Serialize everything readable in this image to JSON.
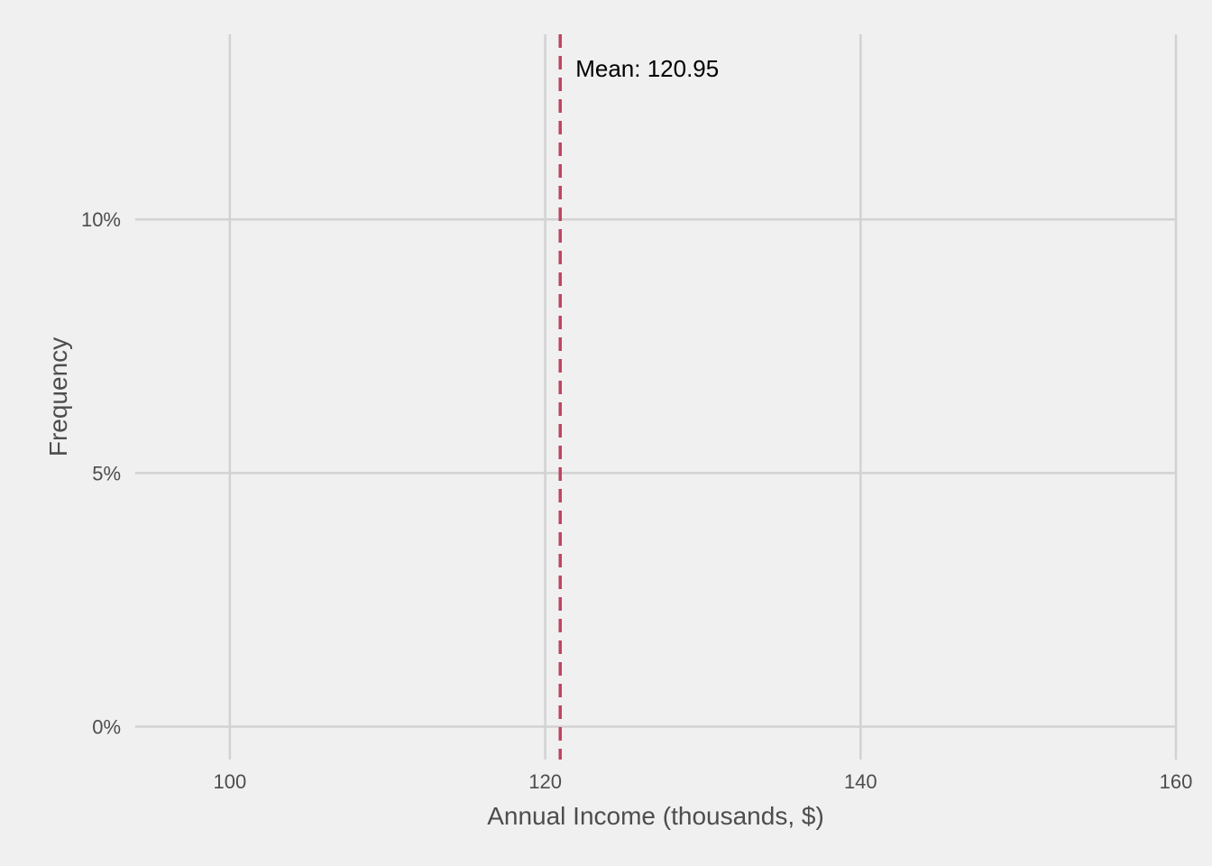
{
  "chart_data": {
    "type": "bar",
    "title": "",
    "xlabel": "Annual Income (thousands, $)",
    "ylabel": "Frequency",
    "xlim": [
      94,
      160
    ],
    "ylim": [
      -0.0065,
      0.1365
    ],
    "x_ticks": [
      100,
      120,
      140,
      160
    ],
    "x_tick_labels": [
      "100",
      "120",
      "140",
      "160"
    ],
    "y_ticks": [
      0,
      0.05,
      0.1
    ],
    "y_tick_labels": [
      "0%",
      "5%",
      "10%"
    ],
    "grid": true,
    "series": [],
    "reference_line": {
      "x": 120.95,
      "style": "dashed",
      "label": "Mean: 120.95"
    },
    "colors": {
      "background": "#f0f0f0",
      "grid": "#d2d2d2",
      "mean_line": "#c0445d",
      "tick_text": "#4d4d4d",
      "annotation_text": "#000000"
    }
  }
}
